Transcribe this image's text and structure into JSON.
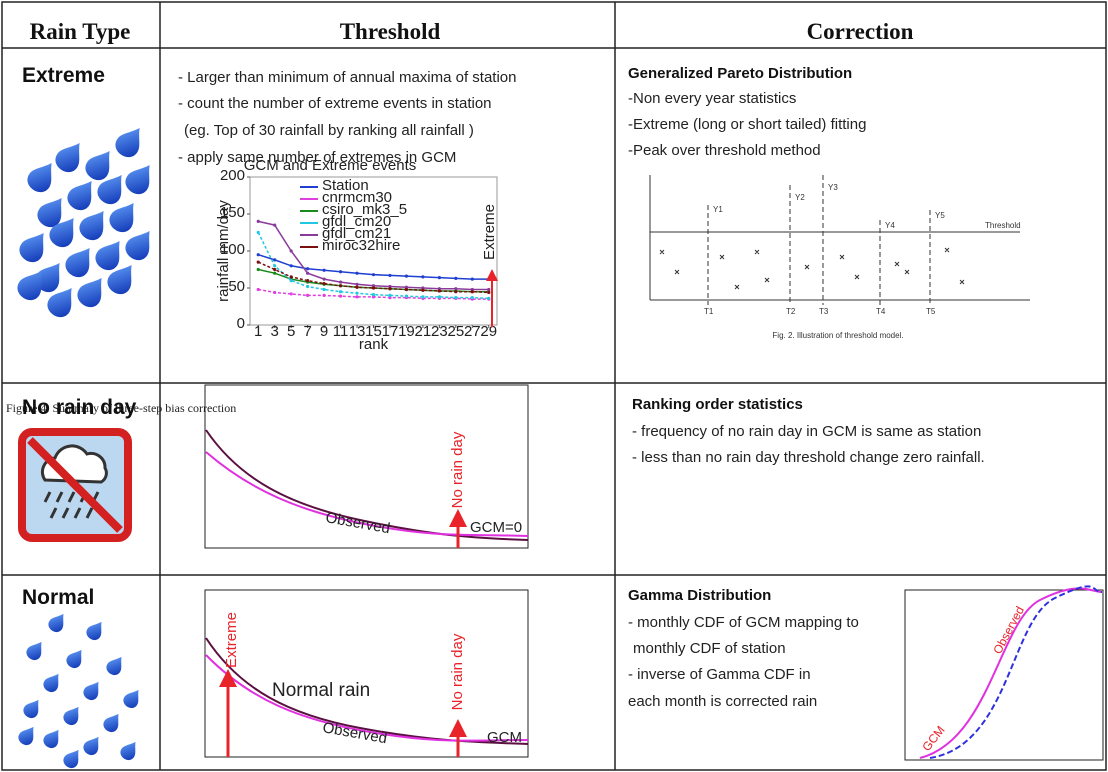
{
  "table": {
    "header": [
      "Rain Type",
      "Threshold",
      "Correction"
    ],
    "rows": [
      {
        "rain_type": "Extreme",
        "threshold": [
          "- Larger than minimum of annual maxima of station",
          "- count the number of extreme events in station",
          "(eg. Top of 30 rainfall by ranking all rainfall )",
          "- apply same number of extremes in GCM"
        ],
        "correction": {
          "title": "Generalized Pareto Distribution",
          "lines": [
            "-Non every year statistics",
            "-Extreme (long or short tailed) fitting",
            "-Peak over threshold method"
          ],
          "figure": {
            "threshold": "Threshold",
            "peaks": [
              "Y1",
              "Y2",
              "Y3",
              "Y4",
              "Y5"
            ],
            "times": [
              "T1",
              "T2",
              "T3",
              "T4",
              "T5"
            ],
            "caption": "Fig. 2. Illustration of threshold model."
          }
        }
      },
      {
        "rain_type": "No rain day",
        "caption": "Figure 4. Summary of three-step bias correction",
        "threshold_figure": {
          "curve": "Observed",
          "marker": "No rain day",
          "zero": "GCM=0"
        },
        "correction": {
          "title": "Ranking order statistics",
          "lines": [
            "- frequency of no rain day in GCM is same as station",
            "- less than no rain day threshold change zero rainfall."
          ]
        }
      },
      {
        "rain_type": "Normal",
        "threshold_figure": {
          "extreme": "Extreme",
          "middle": "Normal rain",
          "marker": "No rain day",
          "curve": "Observed",
          "model": "GCM"
        },
        "correction": {
          "title": "Gamma Distribution",
          "lines": [
            "- monthly CDF of GCM mapping to",
            "monthly CDF of station",
            "- inverse of Gamma CDF in",
            "each month is corrected rain"
          ],
          "figure": {
            "observed": "Observed",
            "model": "GCM"
          }
        }
      }
    ]
  },
  "chart_data": {
    "type": "line",
    "title": "GCM and Extreme events",
    "x_label": "rank",
    "y_label": "rainfall mm/day",
    "annotation": "Extreme",
    "x": [
      1,
      3,
      5,
      7,
      9,
      11,
      13,
      15,
      17,
      19,
      21,
      23,
      25,
      27,
      29
    ],
    "xlim": [
      0,
      30
    ],
    "xticks": [
      1,
      3,
      5,
      7,
      9,
      11,
      13,
      15,
      17,
      19,
      21,
      23,
      25,
      27,
      29
    ],
    "ylim": [
      0,
      200
    ],
    "yticks": [
      0,
      50,
      100,
      150,
      200
    ],
    "series": [
      {
        "name": "Station",
        "color": "#1f3fd1",
        "values": [
          95,
          88,
          80,
          76,
          74,
          72,
          70,
          68,
          67,
          66,
          65,
          64,
          63,
          62,
          62
        ]
      },
      {
        "name": "cnrmcm30",
        "color": "#e040e0",
        "values": [
          48,
          44,
          42,
          40,
          40,
          39,
          38,
          38,
          37,
          37,
          36,
          36,
          36,
          35,
          35
        ]
      },
      {
        "name": "csiro_mk3_5",
        "color": "#1a8a1a",
        "values": [
          75,
          70,
          62,
          58,
          55,
          53,
          51,
          50,
          49,
          48,
          47,
          46,
          46,
          45,
          45
        ]
      },
      {
        "name": "gfdl_cm20",
        "color": "#22c8e0",
        "values": [
          125,
          80,
          60,
          52,
          48,
          45,
          43,
          41,
          40,
          39,
          38,
          38,
          37,
          37,
          36
        ]
      },
      {
        "name": "gfdl_cm21",
        "color": "#8a3a9a",
        "values": [
          140,
          135,
          100,
          70,
          62,
          58,
          55,
          53,
          52,
          51,
          50,
          49,
          49,
          48,
          48
        ]
      },
      {
        "name": "miroc32hire",
        "color": "#7a1010",
        "values": [
          85,
          75,
          65,
          60,
          56,
          53,
          51,
          50,
          49,
          48,
          47,
          46,
          45,
          45,
          44
        ]
      }
    ]
  }
}
